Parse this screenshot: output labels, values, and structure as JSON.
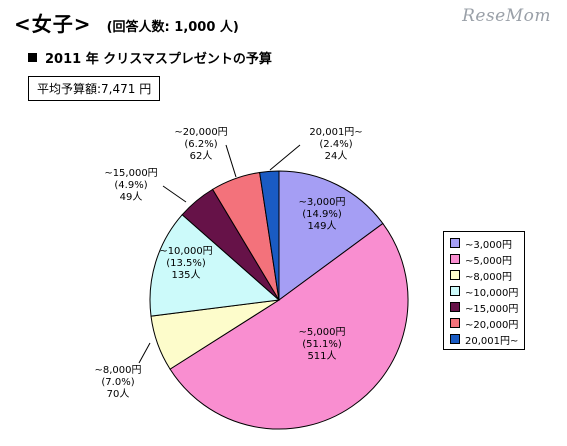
{
  "header": {
    "title": "<女子>",
    "subtitle": "(回答人数: 1,000 人)",
    "watermark": "ReseMom"
  },
  "chart_title": "2011 年 クリスマスプレゼントの予算",
  "average_box": "平均予算額:7,471 円",
  "chart_data": {
    "type": "pie",
    "title": "2011 年 クリスマスプレゼントの予算",
    "total_respondents": 1000,
    "slices": [
      {
        "label": "~3,000円",
        "count": 149,
        "percent": 14.9,
        "count_label": "149人",
        "percent_label": "(14.9%)",
        "color": "#a59ef4"
      },
      {
        "label": "~5,000円",
        "count": 511,
        "percent": 51.1,
        "count_label": "511人",
        "percent_label": "(51.1%)",
        "color": "#f98ed0"
      },
      {
        "label": "~8,000円",
        "count": 70,
        "percent": 7.0,
        "count_label": "70人",
        "percent_label": "(7.0%)",
        "color": "#fdfccb"
      },
      {
        "label": "~10,000円",
        "count": 135,
        "percent": 13.5,
        "count_label": "135人",
        "percent_label": "(13.5%)",
        "color": "#ccfafa"
      },
      {
        "label": "~15,000円",
        "count": 49,
        "percent": 4.9,
        "count_label": "49人",
        "percent_label": "(4.9%)",
        "color": "#661248"
      },
      {
        "label": "~20,000円",
        "count": 62,
        "percent": 6.2,
        "count_label": "62人",
        "percent_label": "(6.2%)",
        "color": "#f3727b"
      },
      {
        "label": "20,001円~",
        "count": 24,
        "percent": 2.4,
        "count_label": "24人",
        "percent_label": "(2.4%)",
        "color": "#1a5bc3"
      }
    ],
    "legend_position": "right"
  }
}
